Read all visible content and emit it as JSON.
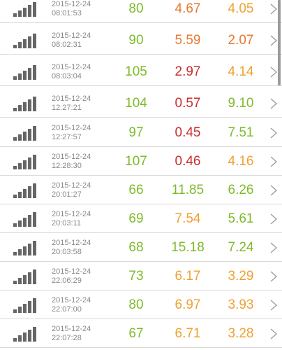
{
  "colors": {
    "green": "#7dbb2a",
    "orange": "#f0a030",
    "deep_orange": "#e8782e",
    "red": "#cc2a2a"
  },
  "icons": {
    "row_left": "signal-strength-icon",
    "row_right": "chevron-right-icon"
  },
  "results": [
    {
      "date": "2015-12-24",
      "time": "08:01:53",
      "ping": "80",
      "download": "4.67",
      "upload": "4.05",
      "download_color": "#e8782e",
      "upload_color": "#f0a030"
    },
    {
      "date": "2015-12-24",
      "time": "08:02:31",
      "ping": "90",
      "download": "5.59",
      "upload": "2.07",
      "download_color": "#e8782e",
      "upload_color": "#e8782e"
    },
    {
      "date": "2015-12-24",
      "time": "08:03:04",
      "ping": "105",
      "download": "2.97",
      "upload": "4.14",
      "download_color": "#cc2a2a",
      "upload_color": "#f0a030"
    },
    {
      "date": "2015-12-24",
      "time": "12:27:21",
      "ping": "104",
      "download": "0.57",
      "upload": "9.10",
      "download_color": "#cc2a2a",
      "upload_color": "#7dbb2a"
    },
    {
      "date": "2015-12-24",
      "time": "12:27:57",
      "ping": "97",
      "download": "0.45",
      "upload": "7.51",
      "download_color": "#cc2a2a",
      "upload_color": "#7dbb2a"
    },
    {
      "date": "2015-12-24",
      "time": "12:28:30",
      "ping": "107",
      "download": "0.46",
      "upload": "4.16",
      "download_color": "#cc2a2a",
      "upload_color": "#f0a030"
    },
    {
      "date": "2015-12-24",
      "time": "20:01:27",
      "ping": "66",
      "download": "11.85",
      "upload": "6.26",
      "download_color": "#7dbb2a",
      "upload_color": "#7dbb2a"
    },
    {
      "date": "2015-12-24",
      "time": "20:03:11",
      "ping": "69",
      "download": "7.54",
      "upload": "5.61",
      "download_color": "#f0a030",
      "upload_color": "#7dbb2a"
    },
    {
      "date": "2015-12-24",
      "time": "20:03:58",
      "ping": "68",
      "download": "15.18",
      "upload": "7.24",
      "download_color": "#7dbb2a",
      "upload_color": "#7dbb2a"
    },
    {
      "date": "2015-12-24",
      "time": "22:06:29",
      "ping": "73",
      "download": "6.17",
      "upload": "3.29",
      "download_color": "#f0a030",
      "upload_color": "#f0a030"
    },
    {
      "date": "2015-12-24",
      "time": "22:07:00",
      "ping": "80",
      "download": "6.97",
      "upload": "3.93",
      "download_color": "#f0a030",
      "upload_color": "#f0a030"
    },
    {
      "date": "2015-12-24",
      "time": "22:07:28",
      "ping": "67",
      "download": "6.71",
      "upload": "3.28",
      "download_color": "#f0a030",
      "upload_color": "#f0a030"
    }
  ]
}
